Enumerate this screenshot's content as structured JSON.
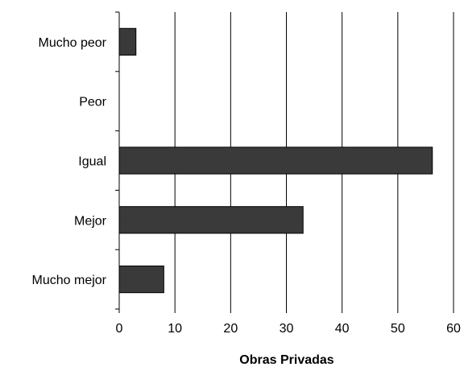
{
  "chart_data": {
    "type": "bar",
    "orientation": "horizontal",
    "categories": [
      "Mucho peor",
      "Peor",
      "Igual",
      "Mejor",
      "Mucho mejor"
    ],
    "values": [
      3,
      0,
      56.2,
      33,
      8
    ],
    "xlabel": "Obras Privadas",
    "ylabel": "",
    "xlim": [
      0,
      60
    ],
    "xticks": [
      0,
      10,
      20,
      30,
      40,
      50,
      60
    ],
    "grid": "vertical",
    "bar_color": "#3a3a3a"
  }
}
